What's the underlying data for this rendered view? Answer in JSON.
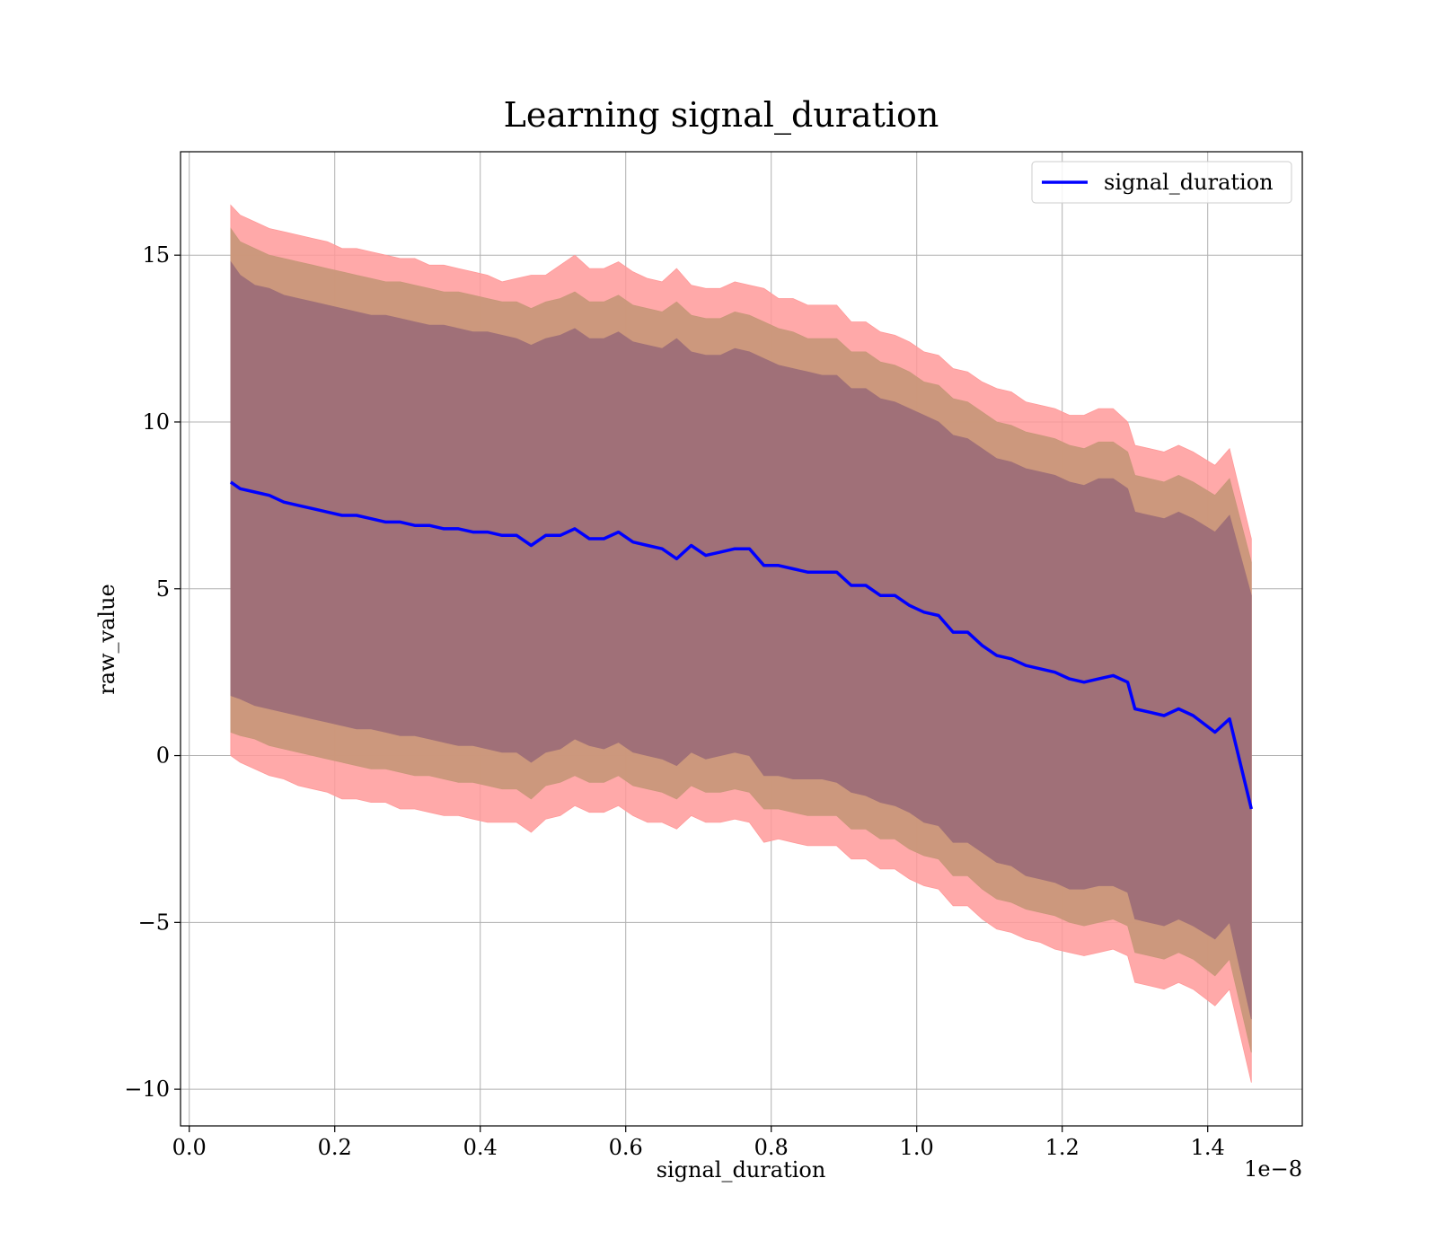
{
  "chart_data": {
    "type": "area",
    "title": "Learning signal_duration",
    "xlabel": "signal_duration",
    "ylabel": "raw_value",
    "x_offset_label": "1e−8",
    "xlim": [
      -0.012,
      1.53
    ],
    "ylim": [
      -11.1,
      18.1
    ],
    "x_ticks": [
      0.0,
      0.2,
      0.4,
      0.6,
      0.8,
      1.0,
      1.2,
      1.4
    ],
    "x_tick_labels": [
      "0.0",
      "0.2",
      "0.4",
      "0.6",
      "0.8",
      "1.0",
      "1.2",
      "1.4"
    ],
    "y_ticks": [
      -10,
      -5,
      0,
      5,
      10,
      15
    ],
    "y_tick_labels": [
      "−10",
      "−5",
      "0",
      "5",
      "10",
      "15"
    ],
    "grid": true,
    "legend_position": "top-right",
    "colors": {
      "line": "#0000ff",
      "band_outer": "#ff9a9a",
      "band_middle": "#c9977a",
      "band_inner": "#a07078",
      "grid": "#b0b0b0"
    },
    "series": [
      {
        "name": "signal_duration",
        "x": [
          0.057,
          0.07,
          0.09,
          0.11,
          0.13,
          0.15,
          0.17,
          0.19,
          0.21,
          0.23,
          0.25,
          0.27,
          0.29,
          0.31,
          0.33,
          0.35,
          0.37,
          0.39,
          0.41,
          0.43,
          0.45,
          0.47,
          0.49,
          0.51,
          0.53,
          0.55,
          0.57,
          0.59,
          0.61,
          0.63,
          0.65,
          0.67,
          0.69,
          0.71,
          0.73,
          0.75,
          0.77,
          0.79,
          0.81,
          0.83,
          0.85,
          0.87,
          0.89,
          0.91,
          0.93,
          0.95,
          0.97,
          0.99,
          1.01,
          1.03,
          1.05,
          1.07,
          1.09,
          1.11,
          1.13,
          1.15,
          1.17,
          1.19,
          1.21,
          1.23,
          1.25,
          1.27,
          1.29,
          1.3,
          1.32,
          1.34,
          1.36,
          1.38,
          1.41,
          1.43,
          1.46
        ],
        "y": [
          8.2,
          8.0,
          7.9,
          7.8,
          7.6,
          7.5,
          7.4,
          7.3,
          7.2,
          7.2,
          7.1,
          7.0,
          7.0,
          6.9,
          6.9,
          6.8,
          6.8,
          6.7,
          6.7,
          6.6,
          6.6,
          6.3,
          6.6,
          6.6,
          6.8,
          6.5,
          6.5,
          6.7,
          6.4,
          6.3,
          6.2,
          5.9,
          6.3,
          6.0,
          6.1,
          6.2,
          6.2,
          5.7,
          5.7,
          5.6,
          5.5,
          5.5,
          5.5,
          5.1,
          5.1,
          4.8,
          4.8,
          4.5,
          4.3,
          4.2,
          3.7,
          3.7,
          3.3,
          3.0,
          2.9,
          2.7,
          2.6,
          2.5,
          2.3,
          2.2,
          2.3,
          2.4,
          2.2,
          1.4,
          1.3,
          1.2,
          1.4,
          1.2,
          0.7,
          1.1,
          -1.6
        ],
        "upper_outer": [
          16.5,
          16.2,
          16.0,
          15.8,
          15.7,
          15.6,
          15.5,
          15.4,
          15.2,
          15.2,
          15.1,
          15.0,
          14.9,
          14.9,
          14.7,
          14.7,
          14.6,
          14.5,
          14.4,
          14.2,
          14.3,
          14.4,
          14.4,
          14.7,
          15.0,
          14.6,
          14.6,
          14.8,
          14.5,
          14.3,
          14.2,
          14.6,
          14.1,
          14.0,
          14.0,
          14.2,
          14.1,
          14.0,
          13.7,
          13.7,
          13.5,
          13.5,
          13.5,
          13.0,
          13.0,
          12.7,
          12.6,
          12.4,
          12.1,
          12.0,
          11.6,
          11.5,
          11.2,
          11.0,
          10.9,
          10.6,
          10.5,
          10.4,
          10.2,
          10.2,
          10.4,
          10.4,
          10.0,
          9.3,
          9.2,
          9.1,
          9.3,
          9.1,
          8.7,
          9.2,
          6.5
        ],
        "lower_outer": [
          0.0,
          -0.2,
          -0.4,
          -0.6,
          -0.7,
          -0.9,
          -1.0,
          -1.1,
          -1.3,
          -1.3,
          -1.4,
          -1.4,
          -1.6,
          -1.6,
          -1.7,
          -1.8,
          -1.8,
          -1.9,
          -2.0,
          -2.0,
          -2.0,
          -2.3,
          -1.9,
          -1.8,
          -1.5,
          -1.7,
          -1.7,
          -1.5,
          -1.8,
          -2.0,
          -2.0,
          -2.2,
          -1.8,
          -2.0,
          -2.0,
          -1.9,
          -2.0,
          -2.6,
          -2.5,
          -2.6,
          -2.7,
          -2.7,
          -2.7,
          -3.1,
          -3.1,
          -3.4,
          -3.4,
          -3.7,
          -3.9,
          -4.0,
          -4.5,
          -4.5,
          -4.9,
          -5.2,
          -5.3,
          -5.5,
          -5.6,
          -5.8,
          -5.9,
          -6.0,
          -5.9,
          -5.8,
          -6.0,
          -6.8,
          -6.9,
          -7.0,
          -6.8,
          -7.0,
          -7.5,
          -7.0,
          -9.8
        ],
        "upper_middle": [
          15.8,
          15.4,
          15.2,
          15.0,
          14.9,
          14.8,
          14.7,
          14.6,
          14.5,
          14.4,
          14.3,
          14.2,
          14.2,
          14.1,
          14.0,
          13.9,
          13.9,
          13.8,
          13.7,
          13.6,
          13.6,
          13.4,
          13.6,
          13.7,
          13.9,
          13.6,
          13.6,
          13.8,
          13.5,
          13.4,
          13.3,
          13.6,
          13.2,
          13.1,
          13.1,
          13.3,
          13.2,
          13.0,
          12.8,
          12.7,
          12.5,
          12.5,
          12.5,
          12.1,
          12.1,
          11.8,
          11.7,
          11.5,
          11.2,
          11.1,
          10.7,
          10.6,
          10.3,
          10.0,
          9.9,
          9.7,
          9.6,
          9.5,
          9.3,
          9.2,
          9.4,
          9.4,
          9.1,
          8.4,
          8.3,
          8.2,
          8.4,
          8.2,
          7.8,
          8.3,
          5.8
        ],
        "lower_middle": [
          0.7,
          0.6,
          0.5,
          0.3,
          0.2,
          0.1,
          0.0,
          -0.1,
          -0.2,
          -0.3,
          -0.4,
          -0.4,
          -0.5,
          -0.6,
          -0.6,
          -0.7,
          -0.8,
          -0.8,
          -0.9,
          -1.0,
          -1.0,
          -1.3,
          -0.9,
          -0.8,
          -0.6,
          -0.8,
          -0.8,
          -0.6,
          -0.9,
          -1.0,
          -1.1,
          -1.3,
          -0.9,
          -1.1,
          -1.1,
          -1.0,
          -1.1,
          -1.6,
          -1.6,
          -1.7,
          -1.8,
          -1.8,
          -1.8,
          -2.2,
          -2.2,
          -2.5,
          -2.5,
          -2.8,
          -3.0,
          -3.1,
          -3.6,
          -3.6,
          -4.0,
          -4.3,
          -4.4,
          -4.6,
          -4.7,
          -4.8,
          -5.0,
          -5.1,
          -5.0,
          -4.9,
          -5.1,
          -5.9,
          -6.0,
          -6.1,
          -5.9,
          -6.1,
          -6.6,
          -6.1,
          -8.9
        ],
        "upper_inner": [
          14.8,
          14.4,
          14.1,
          14.0,
          13.8,
          13.7,
          13.6,
          13.5,
          13.4,
          13.3,
          13.2,
          13.2,
          13.1,
          13.0,
          12.9,
          12.9,
          12.8,
          12.7,
          12.7,
          12.6,
          12.5,
          12.3,
          12.5,
          12.6,
          12.8,
          12.5,
          12.5,
          12.7,
          12.4,
          12.3,
          12.2,
          12.5,
          12.1,
          12.0,
          12.0,
          12.2,
          12.1,
          11.9,
          11.7,
          11.6,
          11.5,
          11.4,
          11.4,
          11.0,
          11.0,
          10.7,
          10.6,
          10.4,
          10.2,
          10.0,
          9.6,
          9.5,
          9.2,
          8.9,
          8.8,
          8.6,
          8.5,
          8.4,
          8.2,
          8.1,
          8.3,
          8.3,
          8.0,
          7.3,
          7.2,
          7.1,
          7.3,
          7.1,
          6.7,
          7.2,
          4.8
        ],
        "lower_inner": [
          1.8,
          1.7,
          1.5,
          1.4,
          1.3,
          1.2,
          1.1,
          1.0,
          0.9,
          0.8,
          0.8,
          0.7,
          0.6,
          0.6,
          0.5,
          0.4,
          0.3,
          0.3,
          0.2,
          0.1,
          0.1,
          -0.2,
          0.1,
          0.2,
          0.5,
          0.3,
          0.2,
          0.4,
          0.1,
          0.0,
          -0.1,
          -0.3,
          0.1,
          -0.1,
          0.0,
          0.1,
          0.0,
          -0.6,
          -0.6,
          -0.7,
          -0.7,
          -0.7,
          -0.8,
          -1.1,
          -1.2,
          -1.4,
          -1.5,
          -1.7,
          -2.0,
          -2.1,
          -2.6,
          -2.6,
          -2.9,
          -3.2,
          -3.3,
          -3.6,
          -3.7,
          -3.8,
          -4.0,
          -4.0,
          -3.9,
          -3.9,
          -4.1,
          -4.9,
          -5.0,
          -5.1,
          -4.9,
          -5.1,
          -5.5,
          -5.0,
          -7.9
        ]
      }
    ]
  }
}
